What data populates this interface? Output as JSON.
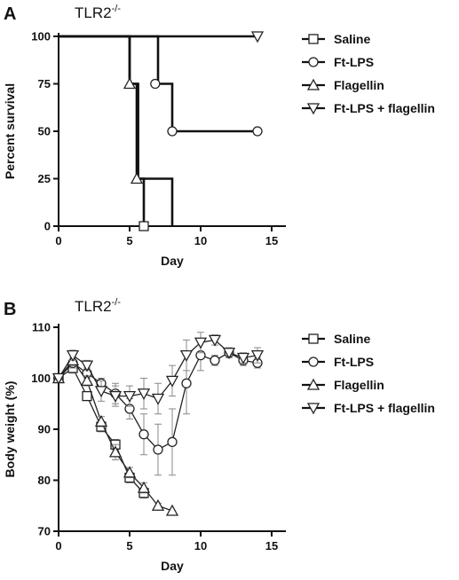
{
  "chart_data": [
    {
      "panel_label": "A",
      "title": "TLR2",
      "title_superscript": "-/-",
      "type": "line",
      "step": true,
      "xlabel": "Day",
      "ylabel": "Percent survival",
      "xlim": [
        0,
        16
      ],
      "ylim": [
        0,
        100
      ],
      "xticks": [
        0,
        5,
        10,
        15
      ],
      "yticks": [
        0,
        25,
        50,
        75,
        100
      ],
      "xtick_labels": [
        "0",
        "5",
        "10",
        "15"
      ],
      "ytick_labels": [
        "0",
        "25",
        "50",
        "75",
        "100"
      ],
      "legend_position": "right",
      "series": [
        {
          "name": "Saline",
          "marker": "square",
          "x": [
            0,
            5,
            5,
            5.6,
            5.6,
            6,
            6
          ],
          "y": [
            100,
            100,
            75,
            75,
            25,
            25,
            0
          ],
          "marker_points": [
            [
              6,
              0
            ]
          ]
        },
        {
          "name": "Ft-LPS",
          "marker": "circle",
          "x": [
            0,
            7,
            7,
            8,
            8,
            14
          ],
          "y": [
            100,
            100,
            75,
            75,
            50,
            50
          ],
          "marker_points": [
            [
              6.8,
              75
            ],
            [
              8,
              50
            ],
            [
              14,
              50
            ]
          ]
        },
        {
          "name": "Flagellin",
          "marker": "triangle-up",
          "x": [
            0,
            5,
            5,
            5.5,
            5.5,
            8,
            8
          ],
          "y": [
            100,
            100,
            75,
            75,
            25,
            25,
            0
          ],
          "marker_points": [
            [
              5,
              75
            ],
            [
              5.5,
              25
            ]
          ]
        },
        {
          "name": "Ft-LPS + flagellin",
          "marker": "triangle-down",
          "x": [
            0,
            14
          ],
          "y": [
            100,
            100
          ],
          "marker_points": [
            [
              14,
              100
            ]
          ]
        }
      ]
    },
    {
      "panel_label": "B",
      "title": "TLR2",
      "title_superscript": "-/-",
      "type": "line",
      "xlabel": "Day",
      "ylabel": "Body weight (%)",
      "xlim": [
        0,
        16
      ],
      "ylim": [
        70,
        110
      ],
      "xticks": [
        0,
        5,
        10,
        15
      ],
      "yticks": [
        70,
        80,
        90,
        100,
        110
      ],
      "xtick_labels": [
        "0",
        "5",
        "10",
        "15"
      ],
      "ytick_labels": [
        "70",
        "80",
        "90",
        "100",
        "110"
      ],
      "legend_position": "right",
      "series": [
        {
          "name": "Saline",
          "marker": "square",
          "x": [
            0,
            1,
            2,
            3,
            4,
            5,
            6
          ],
          "y": [
            100,
            102,
            96.5,
            90.5,
            87,
            80.5,
            77.5
          ],
          "err": [
            0,
            1,
            0.8,
            1,
            1,
            1,
            1
          ]
        },
        {
          "name": "Ft-LPS",
          "marker": "circle",
          "x": [
            0,
            1,
            2,
            3,
            4,
            5,
            6,
            7,
            8,
            9,
            10,
            11,
            12,
            13,
            14
          ],
          "y": [
            100,
            103,
            101,
            99,
            97,
            94,
            89,
            86,
            87.5,
            99,
            104.5,
            103.5,
            105,
            103.5,
            103
          ],
          "err": [
            0,
            1,
            1,
            1,
            2,
            2,
            4,
            5,
            6.5,
            6,
            3,
            1,
            1,
            1,
            1
          ]
        },
        {
          "name": "Flagellin",
          "marker": "triangle-up",
          "x": [
            0,
            1,
            2,
            3,
            4,
            5,
            6,
            7,
            8
          ],
          "y": [
            100,
            103.5,
            99.5,
            91.5,
            85.5,
            81.5,
            78.5,
            75,
            74
          ],
          "err": [
            0,
            1,
            1,
            1,
            1.5,
            1,
            1,
            0.5,
            0
          ]
        },
        {
          "name": "Ft-LPS + flagellin",
          "marker": "triangle-down",
          "x": [
            0,
            1,
            2,
            3,
            4,
            5,
            6,
            7,
            8,
            9,
            10,
            11,
            12,
            13,
            14
          ],
          "y": [
            100,
            104.5,
            102.5,
            97.5,
            96.5,
            96.5,
            97,
            96,
            99.5,
            104.5,
            107,
            107.5,
            105,
            104,
            104.5
          ],
          "err": [
            0,
            1,
            1,
            2,
            2,
            2,
            3,
            3,
            3,
            3,
            2,
            1,
            1,
            1,
            1.5
          ]
        }
      ]
    }
  ]
}
